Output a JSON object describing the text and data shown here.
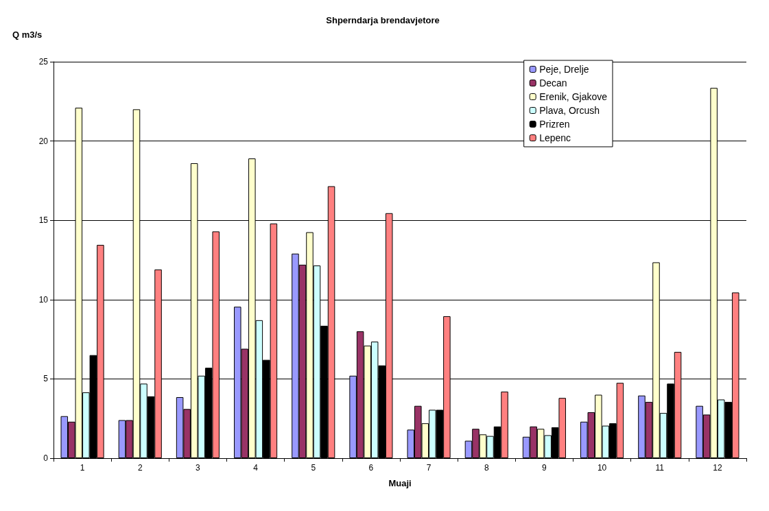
{
  "chart_data": {
    "type": "bar",
    "title": "Shperndarja brendavjetore",
    "xlabel": "Muaji",
    "ylabel": "Q m3/s",
    "categories": [
      "1",
      "2",
      "3",
      "4",
      "5",
      "6",
      "7",
      "8",
      "9",
      "10",
      "11",
      "12"
    ],
    "series": [
      {
        "name": "Peje, Drelje",
        "color": "#9999ff",
        "values": [
          2.65,
          2.4,
          3.85,
          9.55,
          12.9,
          5.2,
          1.8,
          1.1,
          1.35,
          2.3,
          3.95,
          3.3
        ]
      },
      {
        "name": "Decan",
        "color": "#993366",
        "values": [
          2.3,
          2.4,
          3.1,
          6.9,
          12.2,
          8.0,
          3.3,
          1.85,
          2.0,
          2.9,
          3.55,
          2.75
        ]
      },
      {
        "name": "Erenik, Gjakove",
        "color": "#ffffcc",
        "values": [
          22.1,
          22.0,
          18.6,
          18.9,
          14.25,
          7.1,
          2.2,
          1.5,
          1.85,
          4.0,
          12.35,
          23.35
        ]
      },
      {
        "name": "Plava, Orcush",
        "color": "#ccffff",
        "values": [
          4.15,
          4.7,
          5.2,
          8.7,
          12.15,
          7.35,
          3.05,
          1.4,
          1.45,
          2.05,
          2.85,
          3.7
        ]
      },
      {
        "name": "Prizren",
        "color": "#000000",
        "values": [
          6.5,
          3.9,
          5.7,
          6.2,
          8.35,
          5.85,
          3.05,
          2.0,
          1.95,
          2.2,
          4.7,
          3.55
        ]
      },
      {
        "name": "Lepenc",
        "color": "#ff8080",
        "values": [
          13.45,
          11.9,
          14.3,
          14.8,
          17.15,
          15.45,
          8.95,
          4.2,
          3.8,
          4.75,
          6.7,
          10.45
        ]
      }
    ],
    "ylim": [
      0,
      25
    ],
    "yticks": [
      0,
      5,
      10,
      15,
      20,
      25
    ],
    "grid": "y",
    "legend": "top right"
  }
}
